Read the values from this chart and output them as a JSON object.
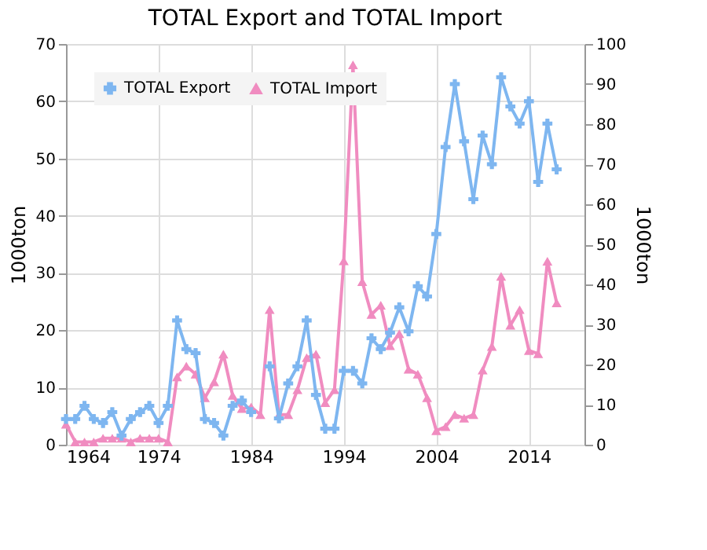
{
  "chart_data": {
    "type": "line",
    "title": "TOTAL Export and TOTAL Import",
    "ylabel": "1000ton",
    "y2label": "1000ton",
    "x": [
      1964,
      1965,
      1966,
      1967,
      1968,
      1969,
      1970,
      1971,
      1972,
      1973,
      1974,
      1975,
      1976,
      1977,
      1978,
      1979,
      1980,
      1981,
      1982,
      1983,
      1984,
      1985,
      1986,
      1987,
      1988,
      1989,
      1990,
      1991,
      1992,
      1993,
      1994,
      1995,
      1996,
      1997,
      1998,
      1999,
      2000,
      2001,
      2002,
      2003,
      2004,
      2005,
      2006,
      2007,
      2008,
      2009,
      2010,
      2011,
      2012,
      2013,
      2014,
      2015,
      2016,
      2017
    ],
    "series": [
      {
        "name": "TOTAL Export",
        "color": "#7eb6f0",
        "marker": "cross",
        "axis": "y",
        "values": [
          4.5,
          4.5,
          6.8,
          4.5,
          3.8,
          5.7,
          1.6,
          4.5,
          5.7,
          6.8,
          3.8,
          6.8,
          21.7,
          16.7,
          16,
          4.5,
          3.8,
          1.6,
          6.8,
          7.7,
          5.7,
          null,
          13.7,
          4.6,
          10.7,
          13.7,
          21.7,
          8.7,
          2.8,
          2.8,
          12.9,
          12.9,
          10.7,
          18.6,
          16.7,
          19.6,
          24,
          19.8,
          27.7,
          25.9,
          36.8,
          52,
          63,
          53,
          42.9,
          54,
          49,
          64.2,
          59.1,
          56.1,
          60,
          45.9,
          56.1,
          48.1
        ]
      },
      {
        "name": "TOTAL Import",
        "color": "#f08cc0",
        "marker": "triangle",
        "axis": "y2",
        "values": [
          5.1,
          0.7,
          0.7,
          0.7,
          1.6,
          1.6,
          1.6,
          0.7,
          1.6,
          1.6,
          1.6,
          0.7,
          16.9,
          19.6,
          17.6,
          11.7,
          15.7,
          22.6,
          12.3,
          9,
          9.4,
          7.5,
          33.7,
          7.5,
          7.5,
          13.7,
          21.7,
          22.6,
          10.5,
          13.7,
          45.9,
          94.8,
          40.7,
          32.5,
          34.8,
          24.7,
          27.7,
          18.8,
          17.6,
          11.7,
          3.5,
          4.5,
          7.5,
          6.6,
          7.5,
          18.6,
          24.5,
          42,
          29.8,
          33.7,
          23.5,
          22.7,
          45.8,
          35.4
        ]
      }
    ],
    "xlim": [
      1964,
      2020
    ],
    "xticks": [
      1964,
      1974,
      1984,
      1994,
      2004,
      2014
    ],
    "ylim": [
      0,
      70
    ],
    "yticks": [
      0,
      10,
      20,
      30,
      40,
      50,
      60,
      70
    ],
    "y2lim": [
      0,
      100
    ],
    "y2ticks": [
      0,
      10,
      20,
      30,
      40,
      50,
      60,
      70,
      80,
      90,
      100
    ],
    "grid": true,
    "legend": "top left"
  }
}
